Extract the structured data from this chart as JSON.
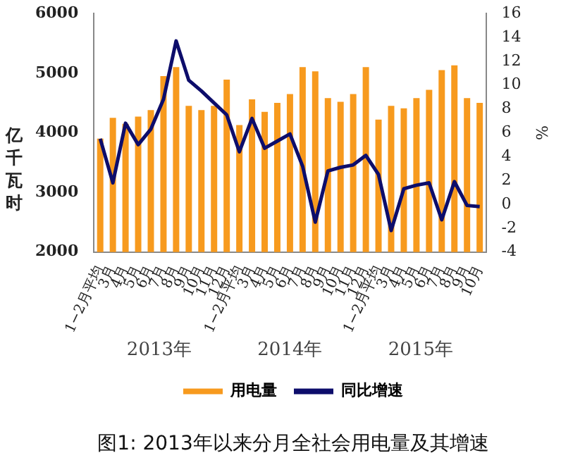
{
  "chart_data": {
    "type": "bar",
    "title": "图1: 2013年以来分月全社会用电量及其增速",
    "ylabel": "亿千瓦时",
    "y2label": "%",
    "annotations": [
      "2013年",
      "2014年",
      "2015年"
    ],
    "categories": [
      "1−2月平均",
      "3月",
      "4月",
      "5月",
      "6月",
      "7月",
      "8月",
      "9月",
      "10月",
      "11月",
      "12月",
      "1−2月平均",
      "3月",
      "4月",
      "5月",
      "6月",
      "7月",
      "8月",
      "9月",
      "10月",
      "11月",
      "12月",
      "1−2月平均",
      "3月",
      "4月",
      "5月",
      "6月",
      "7月",
      "8月",
      "9月",
      "10月"
    ],
    "series": [
      {
        "name": "用电量",
        "color": "#f79a1e",
        "values": [
          3900,
          4250,
          4150,
          4270,
          4380,
          4950,
          5100,
          4450,
          4380,
          4450,
          4890,
          4130,
          4560,
          4350,
          4500,
          4650,
          5100,
          5030,
          4580,
          4520,
          4650,
          5100,
          4220,
          4450,
          4410,
          4580,
          4720,
          5050,
          5130,
          4580,
          4500
        ]
      },
      {
        "name": "同比增速",
        "type": "line",
        "axis": "y2",
        "color": "#0d0d6b",
        "values": [
          5.5,
          1.8,
          6.8,
          5.0,
          6.3,
          8.8,
          13.7,
          10.4,
          9.5,
          8.5,
          7.5,
          4.4,
          7.2,
          4.7,
          5.3,
          5.9,
          3.2,
          -1.5,
          2.8,
          3.1,
          3.3,
          4.1,
          2.5,
          -2.2,
          1.3,
          1.6,
          1.8,
          -1.3,
          1.9,
          -0.1,
          -0.2
        ]
      }
    ],
    "ylim": [
      2000,
      6000
    ],
    "yticks": [
      2000,
      3000,
      4000,
      5000,
      6000
    ],
    "y2lim": [
      -4,
      16
    ],
    "y2ticks": [
      -4,
      -2,
      0,
      2,
      4,
      6,
      8,
      10,
      12,
      14,
      16
    ],
    "legend": "bottom",
    "marker": "none",
    "grid": false
  }
}
